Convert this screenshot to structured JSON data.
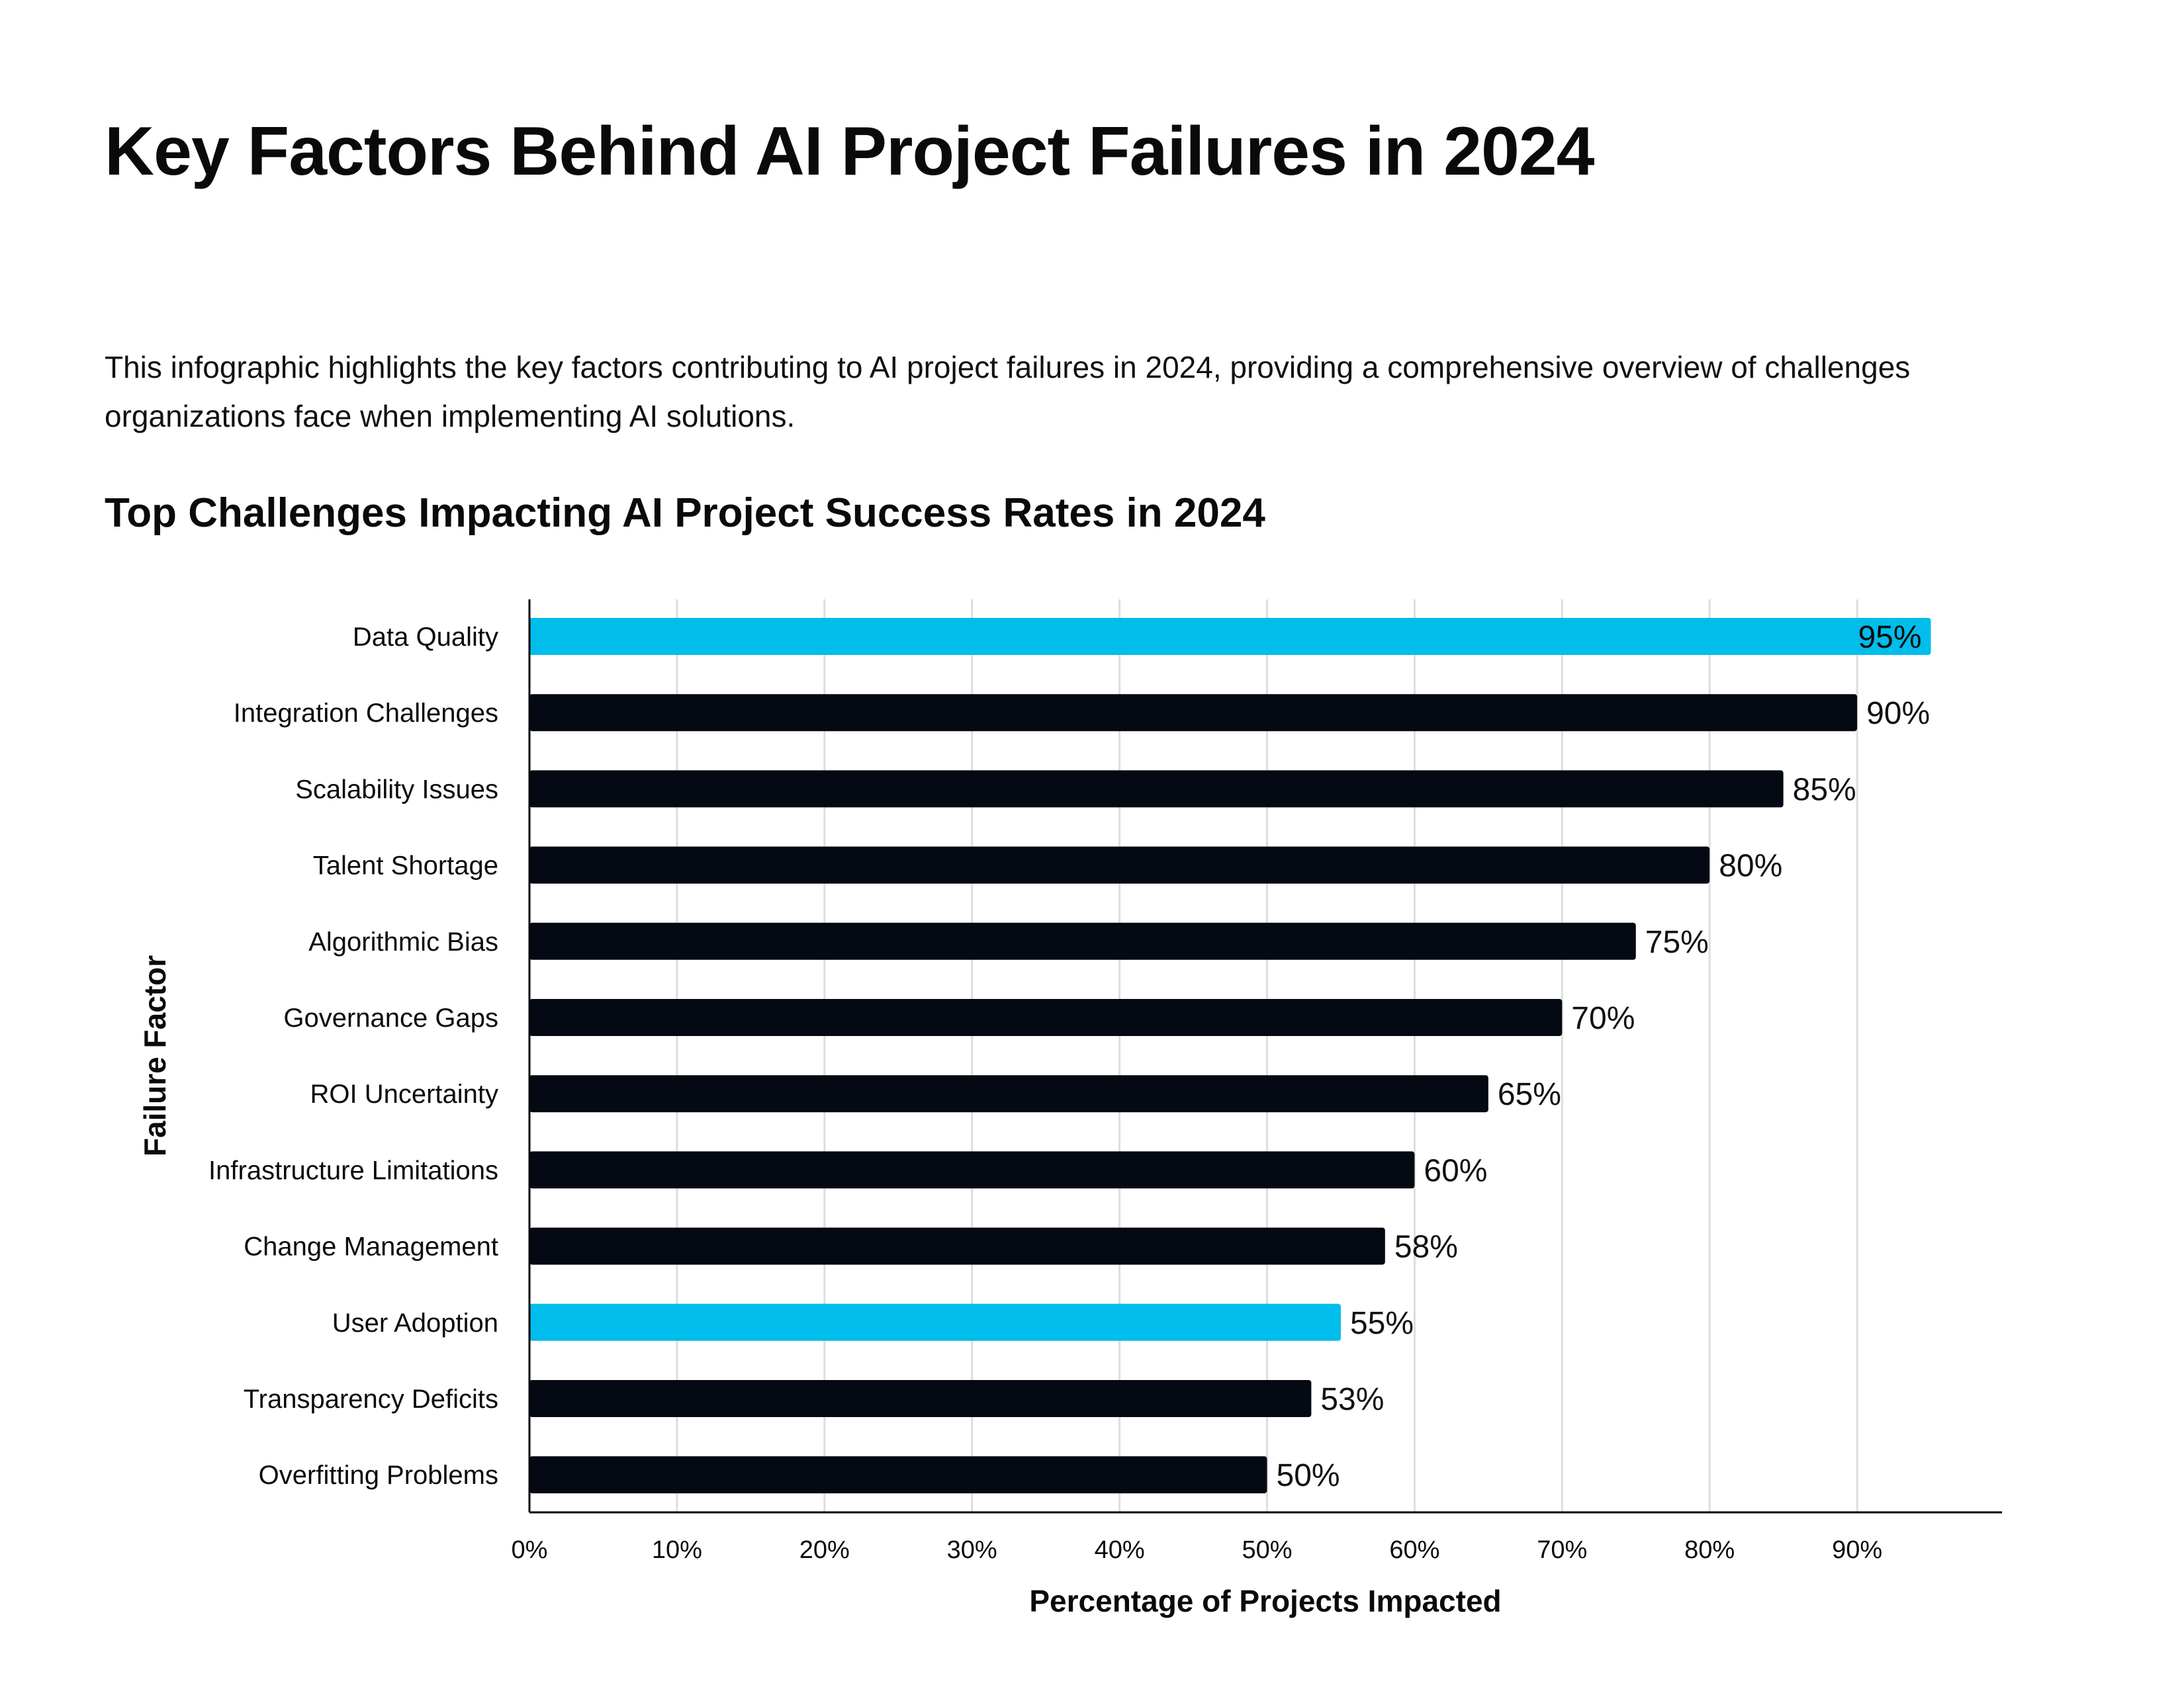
{
  "page": {
    "title": "Key Factors Behind AI Project Failures in 2024",
    "intro": "This infographic highlights the key factors contributing to AI project failures in 2024, providing a comprehensive overview of challenges organizations face when implementing AI solutions.",
    "chart_heading": "Top Challenges Impacting AI Project Success Rates in 2024"
  },
  "colors": {
    "bar_default": "#050913",
    "bar_highlight": "#00BDEB",
    "grid": "#dddddd",
    "axis": "#000000",
    "text": "#0a0a0a"
  },
  "chart_data": {
    "type": "bar",
    "orientation": "horizontal",
    "title": "Top Challenges Impacting AI Project Success Rates in 2024",
    "xlabel": "Percentage of Projects Impacted",
    "ylabel": "Failure Factor",
    "xlim": [
      0,
      100
    ],
    "x_ticks": [
      "0%",
      "10%",
      "20%",
      "30%",
      "40%",
      "50%",
      "60%",
      "70%",
      "80%",
      "90%"
    ],
    "grid": "vertical",
    "categories": [
      "Data Quality",
      "Integration Challenges",
      "Scalability Issues",
      "Talent Shortage",
      "Algorithmic Bias",
      "Governance Gaps",
      "ROI Uncertainty",
      "Infrastructure Limitations",
      "Change Management",
      "User Adoption",
      "Transparency Deficits",
      "Overfitting Problems"
    ],
    "values": [
      95,
      90,
      85,
      80,
      75,
      70,
      65,
      60,
      58,
      55,
      53,
      50
    ],
    "value_labels": [
      "95%",
      "90%",
      "85%",
      "80%",
      "75%",
      "70%",
      "65%",
      "60%",
      "58%",
      "55%",
      "53%",
      "50%"
    ],
    "highlighted": [
      "Data Quality",
      "User Adoption"
    ]
  }
}
